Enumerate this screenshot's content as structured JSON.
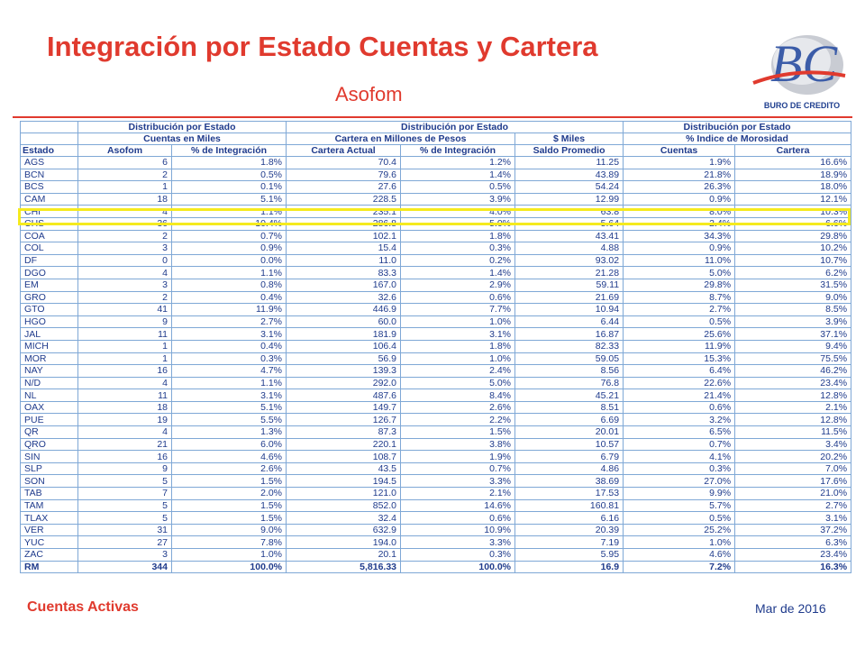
{
  "header": {
    "title": "Integración por Estado Cuentas y Cartera",
    "subtitle": "Asofom",
    "logo_text": "BURO DE CREDITO",
    "logo_letters": "BC"
  },
  "table": {
    "group_headers": {
      "g1_line1": "Distribución por Estado",
      "g1_line2": "Cuentas en Miles",
      "g2_line1": "Distribución por Estado",
      "g2_line2a": "Cartera en Millones de Pesos",
      "g2_line2b": "$ Miles",
      "g3_line1": "Distribución por Estado",
      "g3_line2": "% Indice de Morosidad"
    },
    "columns": [
      "Estado",
      "Asofom",
      "% de Integración",
      "Cartera Actual",
      "% de Integración",
      "Saldo Promedio",
      "Cuentas",
      "Cartera"
    ],
    "rows": [
      [
        "AGS",
        "6",
        "1.8%",
        "70.4",
        "1.2%",
        "11.25",
        "1.9%",
        "16.6%"
      ],
      [
        "BCN",
        "2",
        "0.5%",
        "79.6",
        "1.4%",
        "43.89",
        "21.8%",
        "18.9%"
      ],
      [
        "BCS",
        "1",
        "0.1%",
        "27.6",
        "0.5%",
        "54.24",
        "26.3%",
        "18.0%"
      ],
      [
        "CAM",
        "18",
        "5.1%",
        "228.5",
        "3.9%",
        "12.99",
        "0.9%",
        "12.1%"
      ],
      [
        "CHI",
        "4",
        "1.1%",
        "235.1",
        "4.0%",
        "63.8",
        "8.0%",
        "10.3%"
      ],
      [
        "CHS",
        "36",
        "10.4%",
        "286.8",
        "5.0%",
        "5.64",
        "2.4%",
        "6.6%"
      ],
      [
        "COA",
        "2",
        "0.7%",
        "102.1",
        "1.8%",
        "43.41",
        "34.3%",
        "29.8%"
      ],
      [
        "COL",
        "3",
        "0.9%",
        "15.4",
        "0.3%",
        "4.88",
        "0.9%",
        "10.2%"
      ],
      [
        "DF",
        "0",
        "0.0%",
        "11.0",
        "0.2%",
        "93.02",
        "11.0%",
        "10.7%"
      ],
      [
        "DGO",
        "4",
        "1.1%",
        "83.3",
        "1.4%",
        "21.28",
        "5.0%",
        "6.2%"
      ],
      [
        "EM",
        "3",
        "0.8%",
        "167.0",
        "2.9%",
        "59.11",
        "29.8%",
        "31.5%"
      ],
      [
        "GRO",
        "2",
        "0.4%",
        "32.6",
        "0.6%",
        "21.69",
        "8.7%",
        "9.0%"
      ],
      [
        "GTO",
        "41",
        "11.9%",
        "446.9",
        "7.7%",
        "10.94",
        "2.7%",
        "8.5%"
      ],
      [
        "HGO",
        "9",
        "2.7%",
        "60.0",
        "1.0%",
        "6.44",
        "0.5%",
        "3.9%"
      ],
      [
        "JAL",
        "11",
        "3.1%",
        "181.9",
        "3.1%",
        "16.87",
        "25.6%",
        "37.1%"
      ],
      [
        "MICH",
        "1",
        "0.4%",
        "106.4",
        "1.8%",
        "82.33",
        "11.9%",
        "9.4%"
      ],
      [
        "MOR",
        "1",
        "0.3%",
        "56.9",
        "1.0%",
        "59.05",
        "15.3%",
        "75.5%"
      ],
      [
        "NAY",
        "16",
        "4.7%",
        "139.3",
        "2.4%",
        "8.56",
        "6.4%",
        "46.2%"
      ],
      [
        "N/D",
        "4",
        "1.1%",
        "292.0",
        "5.0%",
        "76.8",
        "22.6%",
        "23.4%"
      ],
      [
        "NL",
        "11",
        "3.1%",
        "487.6",
        "8.4%",
        "45.21",
        "21.4%",
        "12.8%"
      ],
      [
        "OAX",
        "18",
        "5.1%",
        "149.7",
        "2.6%",
        "8.51",
        "0.6%",
        "2.1%"
      ],
      [
        "PUE",
        "19",
        "5.5%",
        "126.7",
        "2.2%",
        "6.69",
        "3.2%",
        "12.8%"
      ],
      [
        "QR",
        "4",
        "1.3%",
        "87.3",
        "1.5%",
        "20.01",
        "6.5%",
        "11.5%"
      ],
      [
        "QRO",
        "21",
        "6.0%",
        "220.1",
        "3.8%",
        "10.57",
        "0.7%",
        "3.4%"
      ],
      [
        "SIN",
        "16",
        "4.6%",
        "108.7",
        "1.9%",
        "6.79",
        "4.1%",
        "20.2%"
      ],
      [
        "SLP",
        "9",
        "2.6%",
        "43.5",
        "0.7%",
        "4.86",
        "0.3%",
        "7.0%"
      ],
      [
        "SON",
        "5",
        "1.5%",
        "194.5",
        "3.3%",
        "38.69",
        "27.0%",
        "17.6%"
      ],
      [
        "TAB",
        "7",
        "2.0%",
        "121.0",
        "2.1%",
        "17.53",
        "9.9%",
        "21.0%"
      ],
      [
        "TAM",
        "5",
        "1.5%",
        "852.0",
        "14.6%",
        "160.81",
        "5.7%",
        "2.7%"
      ],
      [
        "TLAX",
        "5",
        "1.5%",
        "32.4",
        "0.6%",
        "6.16",
        "0.5%",
        "3.1%"
      ],
      [
        "VER",
        "31",
        "9.0%",
        "632.9",
        "10.9%",
        "20.39",
        "25.2%",
        "37.2%"
      ],
      [
        "YUC",
        "27",
        "7.8%",
        "194.0",
        "3.3%",
        "7.19",
        "1.0%",
        "6.3%"
      ],
      [
        "ZAC",
        "3",
        "1.0%",
        "20.1",
        "0.3%",
        "5.95",
        "4.6%",
        "23.4%"
      ]
    ],
    "total": [
      "RM",
      "344",
      "100.0%",
      "5,816.33",
      "100.0%",
      "16.9",
      "7.2%",
      "16.3%"
    ],
    "highlighted_state": "CHI"
  },
  "footer": {
    "left": "Cuentas Activas",
    "right": "Mar de 2016"
  },
  "colors": {
    "accent_red": "#e03a2e",
    "text_blue": "#1f3b8c",
    "grid_blue": "#7fa8d6",
    "highlight_yellow": "#f5ea1e"
  }
}
